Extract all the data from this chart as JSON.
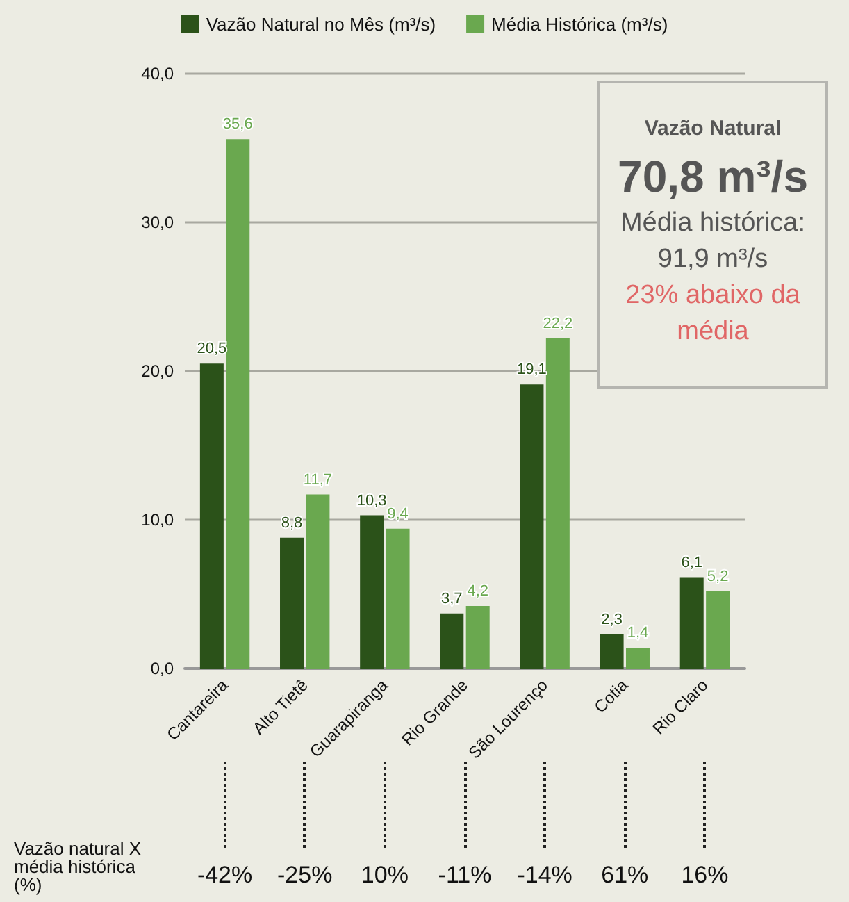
{
  "chart_data": {
    "type": "bar",
    "categories": [
      "Cantareira",
      "Alto Tietê",
      "Guarapiranga",
      "Rio Grande",
      "São Lourenço",
      "Cotia",
      "Rio Claro"
    ],
    "series": [
      {
        "name": "Vazão Natural no Mês (m³/s)",
        "color": "#2b5219",
        "values": [
          20.5,
          8.8,
          10.3,
          3.7,
          19.1,
          2.3,
          6.1
        ],
        "value_labels": [
          "20,5",
          "8,8",
          "10,3",
          "3,7",
          "19,1",
          "2,3",
          "6,1"
        ]
      },
      {
        "name": "Média Histórica (m³/s)",
        "color": "#6aa84f",
        "values": [
          35.6,
          11.7,
          9.4,
          4.2,
          22.2,
          1.4,
          5.2
        ],
        "value_labels": [
          "35,6",
          "11,7",
          "9,4",
          "4,2",
          "22,2",
          "1,4",
          "5,2"
        ]
      }
    ],
    "ylim": [
      0,
      40
    ],
    "yticks": [
      {
        "value": 0,
        "label": "0,0"
      },
      {
        "value": 10,
        "label": "10,0"
      },
      {
        "value": 20,
        "label": "20,0"
      },
      {
        "value": 30,
        "label": "30,0"
      },
      {
        "value": 40,
        "label": "40,0"
      }
    ],
    "grid": "y",
    "legend": "top",
    "annotations": [
      "Vazão Natural",
      "70,8 m³/s",
      "Média histórica:",
      "91,9 m³/s",
      "23% abaixo da média",
      "Vazão natural X média histórica (%)",
      "-42%",
      "-25%",
      "10%",
      "-11%",
      "-14%",
      "61%",
      "16%"
    ]
  }
}
